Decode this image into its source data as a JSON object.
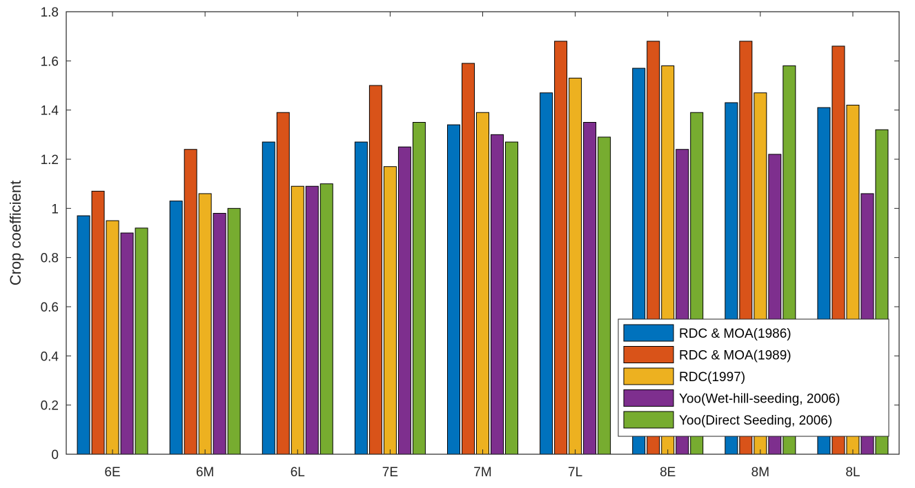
{
  "chart_data": {
    "type": "bar",
    "title": "",
    "xlabel": "",
    "ylabel": "Crop coefficient",
    "ylim": [
      0,
      1.8
    ],
    "yticks": [
      "0",
      "0.2",
      "0.4",
      "0.6",
      "0.8",
      "1",
      "1.2",
      "1.4",
      "1.6",
      "1.8"
    ],
    "categories": [
      "6E",
      "6M",
      "6L",
      "7E",
      "7M",
      "7L",
      "8E",
      "8M",
      "8L"
    ],
    "grid": false,
    "legend_position": "bottom-right",
    "series": [
      {
        "name": "RDC & MOA(1986)",
        "color": "#0072BD",
        "values": [
          0.97,
          1.03,
          1.27,
          1.27,
          1.34,
          1.47,
          1.57,
          1.43,
          1.41
        ]
      },
      {
        "name": "RDC & MOA(1989)",
        "color": "#D95319",
        "values": [
          1.07,
          1.24,
          1.39,
          1.5,
          1.59,
          1.68,
          1.68,
          1.68,
          1.66
        ]
      },
      {
        "name": "RDC(1997)",
        "color": "#EDB120",
        "values": [
          0.95,
          1.06,
          1.09,
          1.17,
          1.39,
          1.53,
          1.58,
          1.47,
          1.42
        ]
      },
      {
        "name": "Yoo(Wet-hill-seeding, 2006)",
        "color": "#7E2F8E",
        "values": [
          0.9,
          0.98,
          1.09,
          1.25,
          1.3,
          1.35,
          1.24,
          1.22,
          1.06
        ]
      },
      {
        "name": "Yoo(Direct Seeding, 2006)",
        "color": "#77AC30",
        "values": [
          0.92,
          1.0,
          1.1,
          1.35,
          1.27,
          1.29,
          1.39,
          1.58,
          1.32
        ]
      }
    ]
  }
}
